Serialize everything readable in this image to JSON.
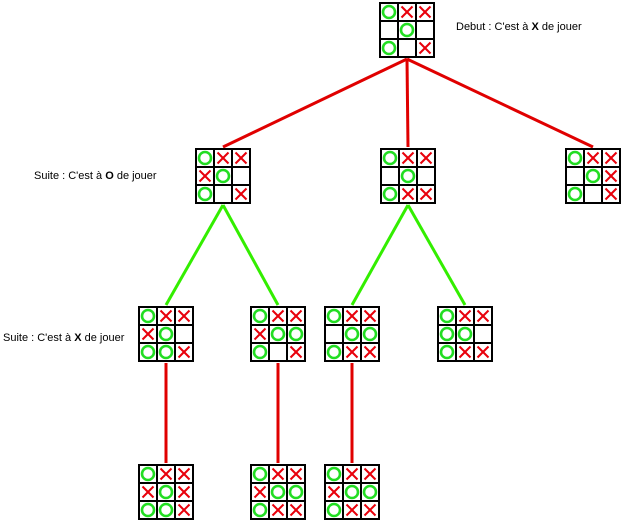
{
  "labels": {
    "debut": {
      "prefix": "Debut : C'est à ",
      "player": "X",
      "suffix": " de jouer"
    },
    "suite_o": {
      "prefix": "Suite : C'est à ",
      "player": "O",
      "suffix": " de jouer"
    },
    "suite_x": {
      "prefix": "Suite : C'est à ",
      "player": "X",
      "suffix": " de jouer"
    }
  },
  "colors": {
    "x_mark": "#e8000b",
    "o_mark": "#22dd22",
    "edge_x_move": "#e00000",
    "edge_o_move": "#33ee00",
    "grid": "#000000"
  },
  "boards": [
    {
      "id": "root",
      "cells": [
        "O",
        "X",
        "X",
        "",
        "O",
        "",
        "O",
        "",
        "X"
      ]
    },
    {
      "id": "l1-a",
      "cells": [
        "O",
        "X",
        "X",
        "X",
        "O",
        "",
        "O",
        "",
        "X"
      ]
    },
    {
      "id": "l1-b",
      "cells": [
        "O",
        "X",
        "X",
        "",
        "O",
        "",
        "O",
        "X",
        "X"
      ]
    },
    {
      "id": "l1-c",
      "cells": [
        "O",
        "X",
        "X",
        "",
        "O",
        "X",
        "O",
        "",
        "X"
      ]
    },
    {
      "id": "l2-a",
      "cells": [
        "O",
        "X",
        "X",
        "X",
        "O",
        "",
        "O",
        "O",
        "X"
      ]
    },
    {
      "id": "l2-b",
      "cells": [
        "O",
        "X",
        "X",
        "X",
        "O",
        "O",
        "O",
        "",
        "X"
      ]
    },
    {
      "id": "l2-c",
      "cells": [
        "O",
        "X",
        "X",
        "",
        "O",
        "O",
        "O",
        "X",
        "X"
      ]
    },
    {
      "id": "l2-d",
      "cells": [
        "O",
        "X",
        "X",
        "O",
        "O",
        "",
        "O",
        "X",
        "X"
      ]
    },
    {
      "id": "l3-a",
      "cells": [
        "O",
        "X",
        "X",
        "X",
        "O",
        "X",
        "O",
        "O",
        "X"
      ]
    },
    {
      "id": "l3-b",
      "cells": [
        "O",
        "X",
        "X",
        "X",
        "O",
        "O",
        "O",
        "X",
        "X"
      ]
    },
    {
      "id": "l3-c",
      "cells": [
        "O",
        "X",
        "X",
        "X",
        "O",
        "O",
        "O",
        "X",
        "X"
      ]
    }
  ],
  "edges": [
    {
      "from": "root",
      "to": "l1-a",
      "kind": "x_move"
    },
    {
      "from": "root",
      "to": "l1-b",
      "kind": "x_move"
    },
    {
      "from": "root",
      "to": "l1-c",
      "kind": "x_move"
    },
    {
      "from": "l1-a",
      "to": "l2-a",
      "kind": "o_move"
    },
    {
      "from": "l1-a",
      "to": "l2-b",
      "kind": "o_move"
    },
    {
      "from": "l1-b",
      "to": "l2-c",
      "kind": "o_move"
    },
    {
      "from": "l1-b",
      "to": "l2-d",
      "kind": "o_move"
    },
    {
      "from": "l2-a",
      "to": "l3-a",
      "kind": "x_move"
    },
    {
      "from": "l2-b",
      "to": "l3-b",
      "kind": "x_move"
    },
    {
      "from": "l2-c",
      "to": "l3-c",
      "kind": "x_move"
    }
  ]
}
